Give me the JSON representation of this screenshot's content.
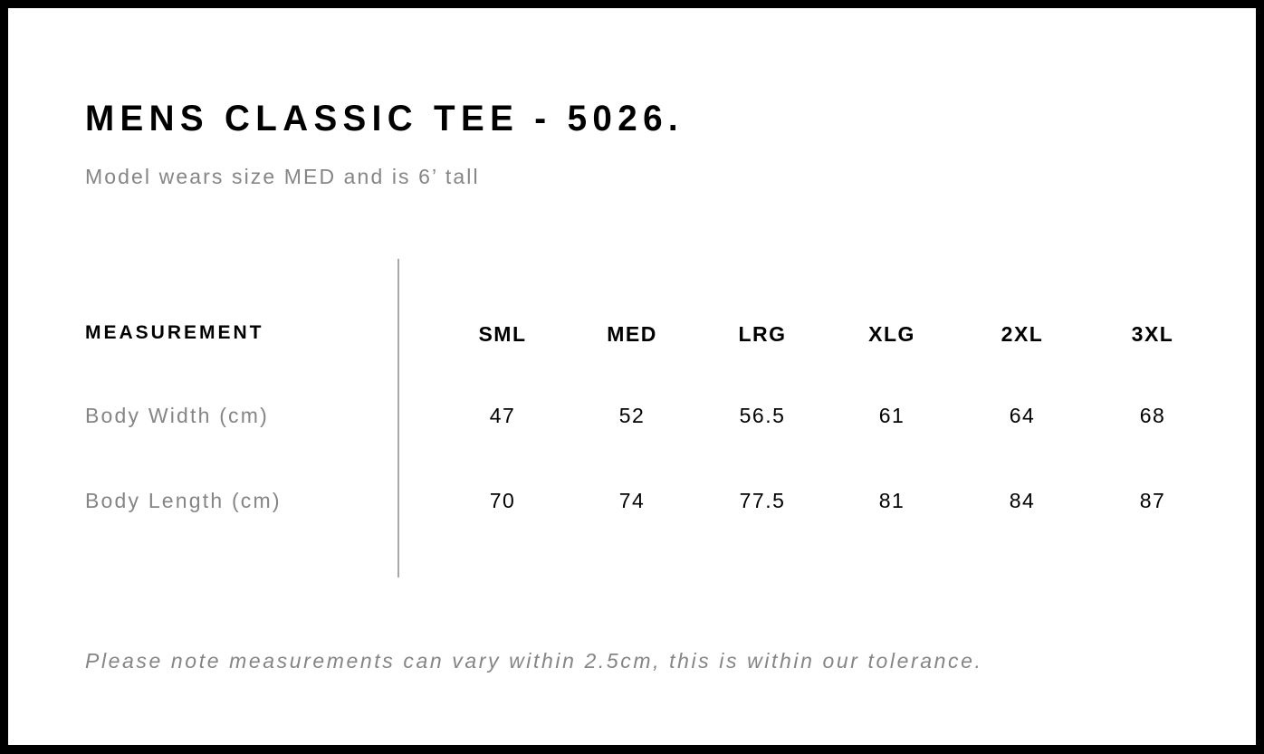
{
  "title": "MENS CLASSIC TEE - 5026.",
  "subtitle": "Model wears size MED and is 6’ tall",
  "table": {
    "header_label": "MEASUREMENT",
    "sizes": [
      "SML",
      "MED",
      "LRG",
      "XLG",
      "2XL",
      "3XL"
    ],
    "rows": [
      {
        "label": "Body Width (cm)",
        "values": [
          "47",
          "52",
          "56.5",
          "61",
          "64",
          "68"
        ]
      },
      {
        "label": "Body Length (cm)",
        "values": [
          "70",
          "74",
          "77.5",
          "81",
          "84",
          "87"
        ]
      }
    ]
  },
  "note": "Please note measurements can vary within 2.5cm, this is within our tolerance."
}
